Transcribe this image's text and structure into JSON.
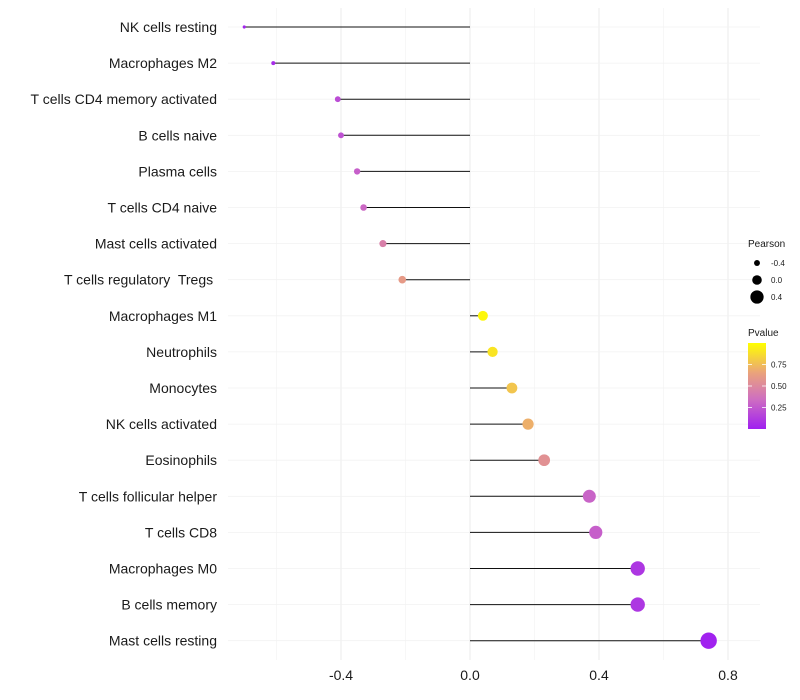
{
  "chart_data": {
    "type": "lollipop",
    "categories": [
      "NK cells resting",
      "Macrophages M2",
      "T cells CD4 memory activated",
      "B cells naive",
      "Plasma cells",
      "T cells CD4 naive",
      "Mast cells activated",
      "T cells regulatory  Tregs ",
      "Macrophages M1",
      "Neutrophils",
      "Monocytes",
      "NK cells activated",
      "Eosinophils",
      "T cells follicular helper",
      "T cells CD8",
      "Macrophages M0",
      "B cells memory",
      "Mast cells resting"
    ],
    "pearson": [
      -0.7,
      -0.61,
      -0.41,
      -0.4,
      -0.35,
      -0.33,
      -0.27,
      -0.21,
      0.04,
      0.07,
      0.13,
      0.18,
      0.23,
      0.37,
      0.39,
      0.52,
      0.52,
      0.74
    ],
    "pvalue": [
      0.02,
      0.05,
      0.2,
      0.22,
      0.28,
      0.32,
      0.45,
      0.6,
      0.97,
      0.9,
      0.78,
      0.7,
      0.55,
      0.3,
      0.28,
      0.1,
      0.1,
      0.01
    ],
    "xlim": [
      -0.75,
      0.82
    ],
    "xticks": [
      -0.4,
      0.0,
      0.4,
      0.8
    ],
    "xtick_labels": [
      "-0.4",
      "0.0",
      "0.4",
      "0.8"
    ],
    "legend": {
      "size_title": "Pearson",
      "size_entries": [
        {
          "label": "-0.4",
          "value": -0.4
        },
        {
          "label": "0.0",
          "value": 0.0
        },
        {
          "label": "0.4",
          "value": 0.4
        }
      ],
      "color_title": "Pvalue",
      "color_ticks": [
        {
          "label": "0.75",
          "value": 0.75
        },
        {
          "label": "0.50",
          "value": 0.5
        },
        {
          "label": "0.25",
          "value": 0.25
        }
      ],
      "color_range": [
        0.0,
        1.0
      ],
      "color_low": "#a020f0",
      "color_high": "#ffff00",
      "placement": "right"
    }
  }
}
